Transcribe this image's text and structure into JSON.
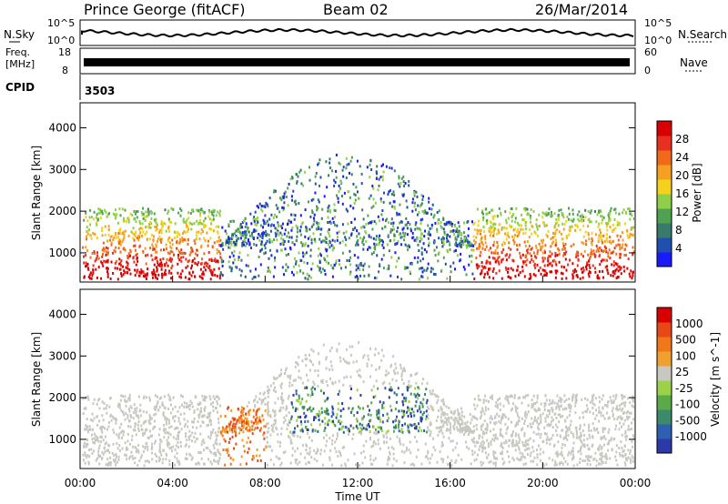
{
  "header": {
    "station": "Prince George (fitACF)",
    "beam": "Beam 02",
    "date": "26/Mar/2014"
  },
  "noise_panel": {
    "left_label": "N.Sky",
    "right_label": "N.Search",
    "left_ticks": [
      "10^5",
      "10^0"
    ],
    "right_ticks": [
      "10^5",
      "10^0"
    ]
  },
  "freq_panel": {
    "left_label_line1": "Freq.",
    "left_label_line2": "[MHz]",
    "right_label": "Nave",
    "left_ticks": [
      "18",
      "8"
    ],
    "right_ticks": [
      "60",
      "0"
    ]
  },
  "cpid": {
    "label": "CPID",
    "value": "3503"
  },
  "chart_data": [
    {
      "type": "heatmap",
      "quantity": "Power",
      "xlabel": "Time UT",
      "ylabel": "Slant Range [km]",
      "colorbar_label": "Power [dB]",
      "x_ticks": [
        "00:00",
        "04:00",
        "08:00",
        "12:00",
        "16:00",
        "20:00",
        "00:00"
      ],
      "y_ticks": [
        1000,
        2000,
        3000,
        4000
      ],
      "ylim": [
        300,
        4600
      ],
      "colorbar_ticks": [
        "4",
        "8",
        "12",
        "16",
        "20",
        "24",
        "28"
      ],
      "colorbar_colors": [
        "#1a1aff",
        "#1f4fb0",
        "#3a7a6a",
        "#4fa350",
        "#8fcf4a",
        "#f2d21a",
        "#f5a020",
        "#f06a1a",
        "#e83020",
        "#d80000"
      ]
    },
    {
      "type": "heatmap",
      "quantity": "Velocity",
      "xlabel": "Time UT",
      "ylabel": "Slant Range [km]",
      "colorbar_label": "Velocity [m s^-1]",
      "x_ticks": [
        "00:00",
        "04:00",
        "08:00",
        "12:00",
        "16:00",
        "20:00",
        "00:00"
      ],
      "y_ticks": [
        1000,
        2000,
        3000,
        4000
      ],
      "ylim": [
        300,
        4600
      ],
      "colorbar_ticks": [
        "1000",
        "500",
        "100",
        "25",
        "-25",
        "-100",
        "-500",
        "-1000"
      ],
      "colorbar_colors": [
        "#2a3aa8",
        "#2f5fb0",
        "#3b8a6a",
        "#5aaa4a",
        "#9bd24a",
        "#c8c8c0",
        "#f0a030",
        "#f07818",
        "#e84818",
        "#d80000"
      ]
    }
  ]
}
